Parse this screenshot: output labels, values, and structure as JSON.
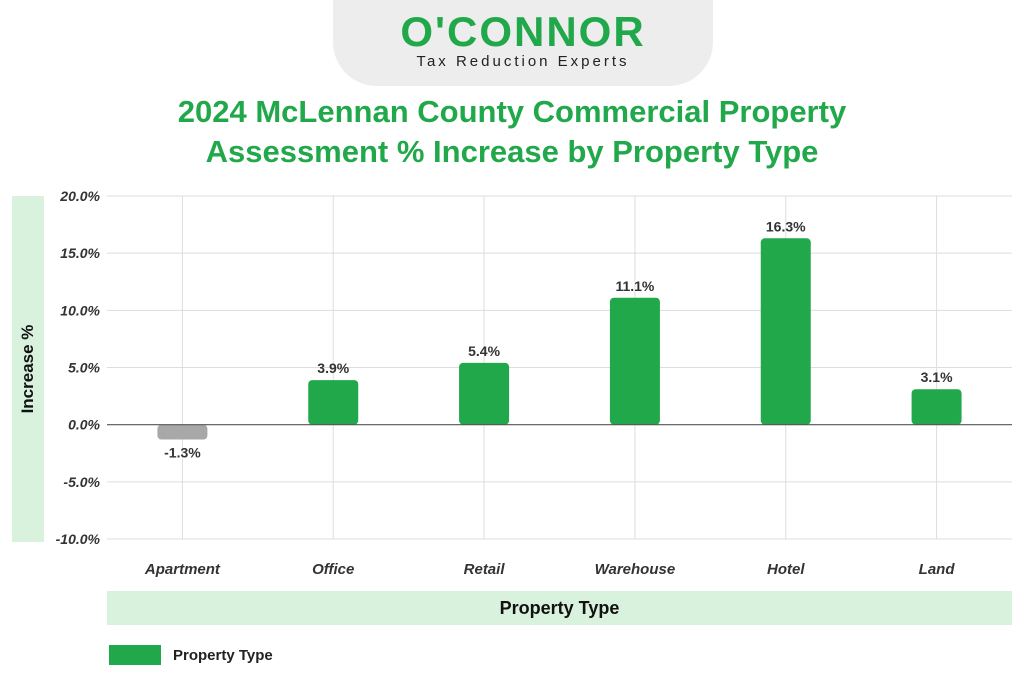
{
  "logo": {
    "name": "O'CONNOR",
    "tagline": "Tax Reduction Experts"
  },
  "colors": {
    "accent": "#21a84a",
    "negative": "#a8a8a8",
    "band": "#d8f2dd",
    "grid": "#dddddd",
    "zero_line": "#555555"
  },
  "chart_data": {
    "type": "bar",
    "title_line1": "2024 McLennan County Commercial Property",
    "title_line2": "Assessment % Increase by Property Type",
    "xlabel": "Property Type",
    "ylabel": "Increase %",
    "categories": [
      "Apartment",
      "Office",
      "Retail",
      "Warehouse",
      "Hotel",
      "Land"
    ],
    "series": [
      {
        "name": "Property Type",
        "values": [
          -1.3,
          3.9,
          5.4,
          11.1,
          16.3,
          3.1
        ],
        "labels": [
          "-1.3%",
          "3.9%",
          "5.4%",
          "11.1%",
          "16.3%",
          "3.1%"
        ]
      }
    ],
    "ylim": [
      -10,
      20
    ],
    "yticks": [
      20,
      15,
      10,
      5,
      0,
      -5,
      -10
    ],
    "ytick_labels": [
      "20.0%",
      "15.0%",
      "10.0%",
      "5.0%",
      "0.0%",
      "-5.0%",
      "-10.0%"
    ],
    "grid": true,
    "legend_position": "bottom-left"
  }
}
